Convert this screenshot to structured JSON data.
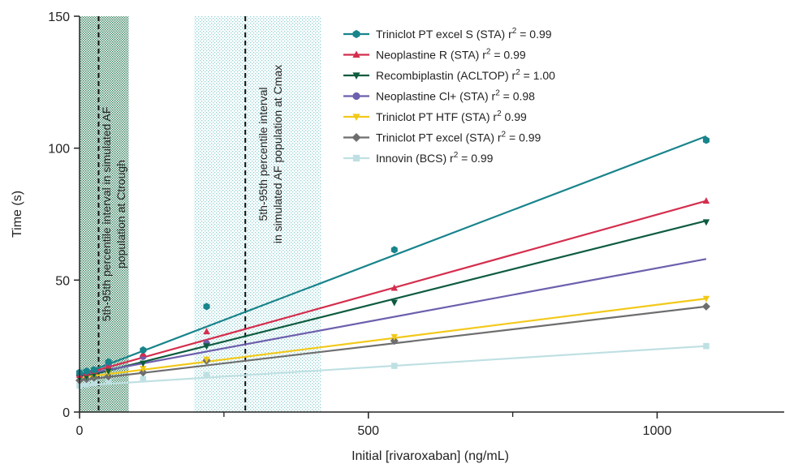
{
  "chart_data": {
    "type": "scatter",
    "xlabel": "Initial [rivaroxaban] (ng/mL)",
    "ylabel": "Time (s)",
    "xlim": [
      0,
      1220
    ],
    "ylim": [
      0,
      150
    ],
    "x_ticks": [
      0,
      500,
      1000
    ],
    "x_tick_labels": [
      "0",
      "500",
      "1000"
    ],
    "x_minor_ticks": [
      250,
      750
    ],
    "y_ticks": [
      0,
      50,
      100,
      150
    ],
    "y_tick_labels": [
      "0",
      "50",
      "100",
      "150"
    ],
    "grid": false,
    "legend_position": "top-right",
    "bands": [
      {
        "x0": 0,
        "x1": 85,
        "color": "#2e7d5a",
        "pattern": "dots-dense"
      },
      {
        "x0": 198,
        "x1": 418,
        "color": "#7ec5c8",
        "pattern": "dots-light"
      }
    ],
    "reference_lines": [
      {
        "x": 33,
        "style": "dashed",
        "label": "5th-95th percentile interval in simulated AF population at Ctrough"
      },
      {
        "x": 287,
        "style": "dashed",
        "label": "5th-95th percentile interval in simulated AF population at Cmax"
      }
    ],
    "annotations": [
      {
        "line1": "5th-95th percentile interval in simulated AF",
        "line2": "population at Ctrough"
      },
      {
        "line1": "5th-95th percentile interval",
        "line2": "in simulated AF population at Cmax"
      }
    ],
    "series": [
      {
        "name": "Triniclot PT excel S (STA)",
        "r2": "0.99",
        "color": "#18848c",
        "marker": "hexagon",
        "x": [
          0,
          12,
          25,
          50,
          110,
          220,
          545,
          1085
        ],
        "y": [
          15,
          15.5,
          16,
          19,
          23.5,
          40,
          61.5,
          103
        ],
        "fit": [
          14,
          104.5
        ]
      },
      {
        "name": "Neoplastine R (STA)",
        "r2": "0.99",
        "color": "#d42e4e",
        "marker": "triangle-up",
        "x": [
          0,
          12,
          25,
          50,
          110,
          220,
          545,
          1085
        ],
        "y": [
          14,
          14.8,
          15.5,
          17.5,
          22,
          30.5,
          47,
          80
        ],
        "fit": [
          14,
          80
        ]
      },
      {
        "name": "Recombiplastin (ACLTOP)",
        "r2": "1.00",
        "color": "#0d5c3f",
        "marker": "triangle-down",
        "x": [
          0,
          12,
          25,
          50,
          110,
          220,
          545,
          1085
        ],
        "y": [
          13,
          13.5,
          14.2,
          15.5,
          18.5,
          25,
          41.5,
          72
        ],
        "fit": [
          13,
          72.5
        ]
      },
      {
        "name": "Neoplastine Cl+ (STA)",
        "r2": "0.98",
        "color": "#6d5fad",
        "marker": "circle",
        "x": [
          0,
          12,
          25,
          50,
          110,
          220
        ],
        "y": [
          14,
          14.5,
          15.5,
          17.5,
          21,
          26
        ],
        "fit": [
          14,
          58
        ]
      },
      {
        "name": "Triniclot PT HTF (STA)",
        "r2": "0.99",
        "color": "#f2c919",
        "marker": "triangle-down",
        "x": [
          0,
          12,
          25,
          50,
          110,
          220,
          545,
          1085
        ],
        "y": [
          13,
          13.5,
          14,
          15,
          16.5,
          20,
          28.5,
          43
        ],
        "fit": [
          13,
          43
        ]
      },
      {
        "name": "Triniclot PT excel (STA)",
        "r2": "0.99",
        "color": "#6e6e6e",
        "marker": "diamond",
        "x": [
          0,
          12,
          25,
          50,
          110,
          220,
          545,
          1085
        ],
        "y": [
          12,
          12.5,
          13,
          13.5,
          15,
          19.5,
          27,
          40
        ],
        "fit": [
          12,
          40
        ]
      },
      {
        "name": "Innovin (BCS)",
        "r2": "0.99",
        "color": "#bfe0e3",
        "marker": "square",
        "x": [
          0,
          12,
          25,
          50,
          110,
          220,
          545,
          1085
        ],
        "y": [
          10,
          10.5,
          11,
          11.5,
          12.5,
          14,
          17.5,
          25
        ],
        "fit": [
          10,
          25
        ]
      }
    ]
  }
}
